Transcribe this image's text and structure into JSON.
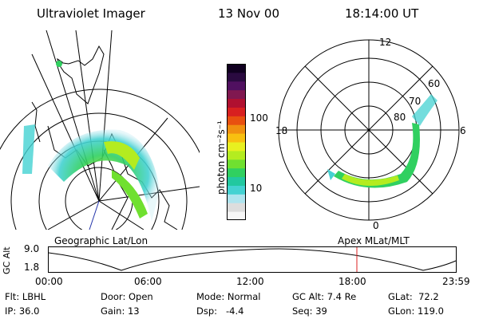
{
  "header": {
    "instrument": "Ultraviolet Imager",
    "date": "13 Nov 00",
    "time": "18:14:00 UT"
  },
  "colorbar": {
    "unit_label": "photon cm⁻²s⁻¹",
    "ticks": [
      "100",
      "10"
    ],
    "colors": [
      "#f7f7f7",
      "#dddddd",
      "#aee4ee",
      "#44d2d2",
      "#22c8a0",
      "#30d060",
      "#70e030",
      "#b4ec20",
      "#e8f020",
      "#f8c010",
      "#f09010",
      "#e85010",
      "#d82020",
      "#b01030",
      "#801850",
      "#501060",
      "#2a0a40",
      "#100020"
    ]
  },
  "polar_plot": {
    "hour_labels": [
      "12",
      "18",
      "6",
      "0"
    ],
    "lat_labels": [
      "60",
      "70",
      "80"
    ]
  },
  "timeline": {
    "y_axis_label": "GC Alt",
    "y_ticks": [
      "9.0",
      "1.8"
    ],
    "left_title": "Geographic Lat/Lon",
    "right_title": "Apex MLat/MLT",
    "x_ticks": [
      "00:00",
      "06:00",
      "12:00",
      "18:00",
      "23:59"
    ],
    "marker_color": "#dd2222"
  },
  "info": {
    "filter_label": "Flt:",
    "filter_value": "LBHL",
    "ip_label": "IP:",
    "ip_value": "36.0",
    "door_label": "Door:",
    "door_value": "Open",
    "gain_label": "Gain:",
    "gain_value": "13",
    "mode_label": "Mode:",
    "mode_value": "Normal",
    "dsp_label": "Dsp:",
    "dsp_value": "-4.4",
    "gcalt_label": "GC Alt:",
    "gcalt_value": "7.4 Re",
    "seq_label": "Seq:",
    "seq_value": "39",
    "glat_label": "GLat:",
    "glat_value": "72.2",
    "glon_label": "GLon:",
    "glon_value": "119.0"
  }
}
